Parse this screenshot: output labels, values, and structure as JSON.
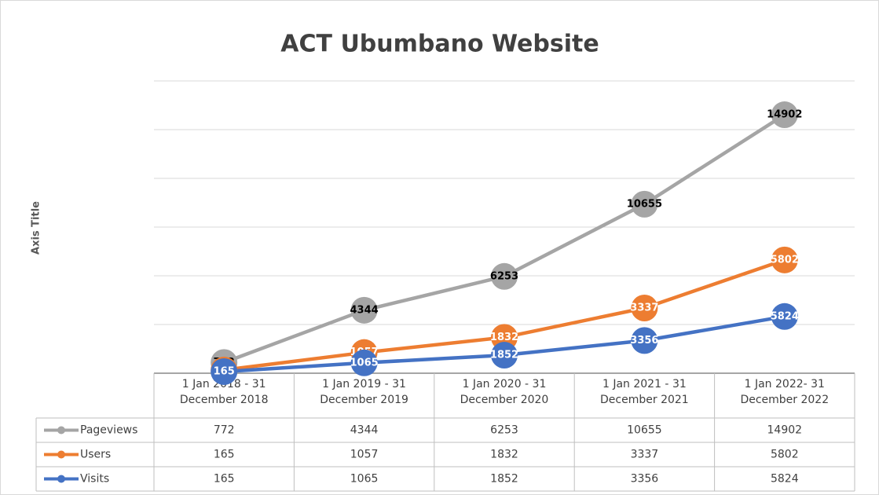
{
  "chart_data": {
    "type": "line",
    "stacked": true,
    "title": "ACT Ubumbano Website",
    "y_label": "Axis Title",
    "categories": [
      "1 Jan 2018 - 31 December 2018",
      "1 Jan 2019 - 31 December 2019",
      "1 Jan 2020 - 31 December 2020",
      "1 Jan 2021 - 31 December 2021",
      "1 Jan 2022- 31 December 2022"
    ],
    "series": [
      {
        "name": "Pageviews",
        "color": "#a5a5a5",
        "label_color": "#000000",
        "values": [
          772,
          4344,
          6253,
          10655,
          14902
        ]
      },
      {
        "name": "Users",
        "color": "#ed7d31",
        "label_color": "#ffffff",
        "values": [
          165,
          1057,
          1832,
          3337,
          5802
        ]
      },
      {
        "name": "Visits",
        "color": "#4472c4",
        "label_color": "#ffffff",
        "values": [
          165,
          1065,
          1852,
          3356,
          5824
        ]
      }
    ],
    "ylim": [
      0,
      30000
    ],
    "yticks": [
      0,
      5000,
      10000,
      15000,
      20000,
      25000,
      30000
    ],
    "grid": true,
    "data_table": true
  }
}
